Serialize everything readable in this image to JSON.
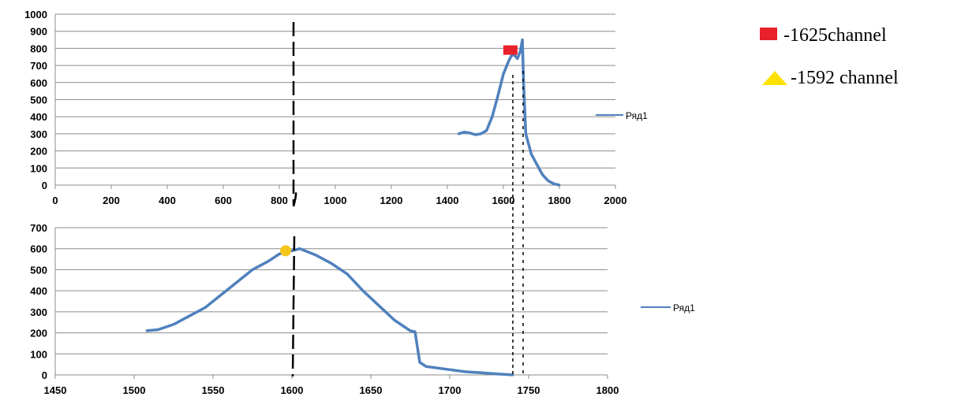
{
  "chart_data": [
    {
      "type": "line",
      "title": "",
      "xlabel": "",
      "ylabel": "",
      "xlim": [
        0,
        2000
      ],
      "ylim": [
        0,
        1000
      ],
      "xticks": [
        "0",
        "200",
        "400",
        "600",
        "800",
        "1000",
        "1200",
        "1400",
        "1600",
        "1800",
        "2000"
      ],
      "yticks": [
        "0",
        "100",
        "200",
        "300",
        "400",
        "500",
        "600",
        "700",
        "800",
        "900",
        "1000"
      ],
      "grid": true,
      "legend": "right",
      "series": [
        {
          "name": "Ряд1",
          "color": "#4f81bd",
          "x": [
            1440,
            1460,
            1480,
            1500,
            1520,
            1540,
            1560,
            1580,
            1600,
            1620,
            1630,
            1640,
            1650,
            1660,
            1668,
            1672,
            1680,
            1700,
            1720,
            1740,
            1760,
            1780,
            1800
          ],
          "y": [
            300,
            310,
            305,
            295,
            300,
            320,
            400,
            520,
            650,
            730,
            760,
            760,
            740,
            780,
            850,
            600,
            300,
            180,
            120,
            60,
            25,
            8,
            0
          ]
        }
      ],
      "marker": {
        "shape": "square",
        "color": "#e8202a",
        "x": 1625,
        "y": 790
      }
    },
    {
      "type": "line",
      "title": "",
      "xlabel": "",
      "ylabel": "",
      "xlim": [
        1450,
        1800
      ],
      "ylim": [
        0,
        700
      ],
      "xticks": [
        "1450",
        "1500",
        "1550",
        "1600",
        "1650",
        "1700",
        "1750",
        "1800"
      ],
      "yticks": [
        "0",
        "100",
        "200",
        "300",
        "400",
        "500",
        "600",
        "700"
      ],
      "grid": true,
      "legend": "right",
      "series": [
        {
          "name": "Ряд1",
          "color": "#4f81bd",
          "x": [
            1508,
            1515,
            1525,
            1535,
            1545,
            1555,
            1565,
            1575,
            1585,
            1592,
            1600,
            1605,
            1615,
            1625,
            1635,
            1645,
            1655,
            1665,
            1675,
            1678,
            1681,
            1685,
            1690,
            1700,
            1710,
            1720,
            1730,
            1740
          ],
          "y": [
            210,
            215,
            240,
            280,
            320,
            380,
            440,
            500,
            540,
            575,
            590,
            600,
            570,
            530,
            480,
            400,
            330,
            260,
            210,
            205,
            60,
            40,
            35,
            25,
            15,
            10,
            5,
            0
          ]
        }
      ],
      "marker": {
        "shape": "circle",
        "color": "#f5c518",
        "x": 1596,
        "y": 590
      }
    }
  ],
  "legend_notes": [
    {
      "symbol": "square",
      "color": "#e8202a",
      "text": "-1625channel"
    },
    {
      "symbol": "triangle",
      "color": "#ffe100",
      "text": "-1592 channel"
    }
  ]
}
